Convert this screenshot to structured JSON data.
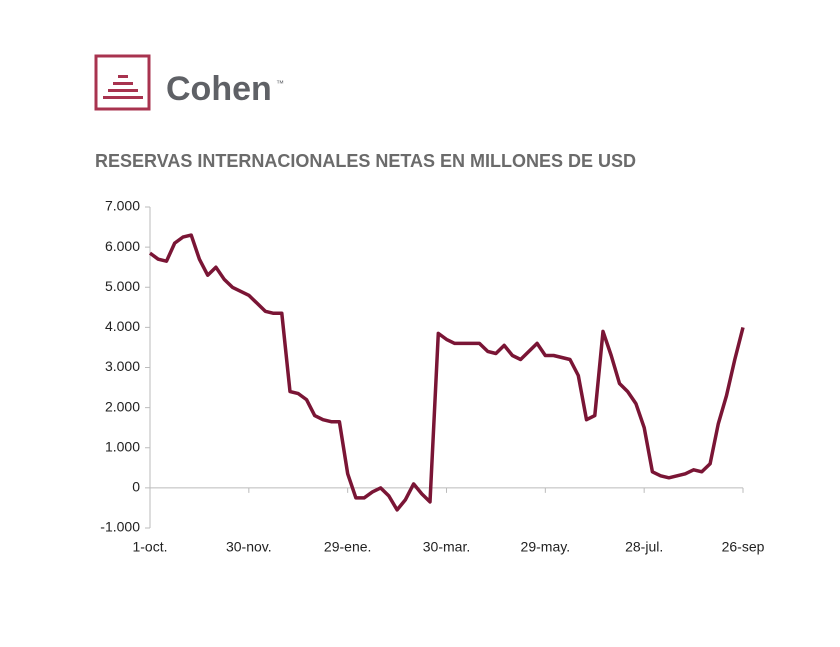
{
  "brand": {
    "name": "Cohen",
    "mark": "™"
  },
  "chart_data": {
    "type": "line",
    "title": "RESERVAS INTERNACIONALES NETAS EN MILLONES DE USD",
    "categories": [
      "1-oct.",
      null,
      null,
      null,
      null,
      null,
      null,
      null,
      null,
      null,
      null,
      null,
      "30-nov.",
      null,
      null,
      null,
      null,
      null,
      null,
      null,
      null,
      null,
      null,
      null,
      "29-ene.",
      null,
      null,
      null,
      null,
      null,
      null,
      null,
      null,
      null,
      null,
      null,
      "30-mar.",
      null,
      null,
      null,
      null,
      null,
      null,
      null,
      null,
      null,
      null,
      null,
      "29-may.",
      null,
      null,
      null,
      null,
      null,
      null,
      null,
      null,
      null,
      null,
      null,
      "28-jul.",
      null,
      null,
      null,
      null,
      null,
      null,
      null,
      null,
      null,
      null,
      null,
      "26-sep"
    ],
    "series": [
      {
        "name": "Reservas",
        "color": "#7a1535",
        "values": [
          5850,
          5700,
          5650,
          6100,
          6250,
          6300,
          5700,
          5300,
          5500,
          5200,
          5000,
          4900,
          4800,
          4600,
          4400,
          4350,
          4350,
          2400,
          2350,
          2200,
          1800,
          1700,
          1650,
          1650,
          350,
          -250,
          -250,
          -100,
          0,
          -200,
          -550,
          -300,
          100,
          -150,
          -350,
          3850,
          3700,
          3600,
          3600,
          3600,
          3600,
          3400,
          3350,
          3550,
          3300,
          3200,
          3400,
          3600,
          3300,
          3300,
          3250,
          3200,
          2800,
          1700,
          1800,
          3900,
          3300,
          2600,
          2400,
          2100,
          1500,
          400,
          300,
          250,
          300,
          350,
          450,
          400,
          600,
          1600,
          2300,
          3200,
          4000
        ]
      }
    ],
    "ylim": [
      -1000,
      7000
    ],
    "yticks": [
      {
        "value": -1000,
        "label": "-1.000"
      },
      0,
      {
        "value": 1000,
        "label": "1.000"
      },
      {
        "value": 2000,
        "label": "2.000"
      },
      {
        "value": 3000,
        "label": "3.000"
      },
      {
        "value": 4000,
        "label": "4.000"
      },
      {
        "value": 5000,
        "label": "5.000"
      },
      {
        "value": 6000,
        "label": "6.000"
      },
      {
        "value": 7000,
        "label": "7.000"
      }
    ],
    "grid": false
  }
}
